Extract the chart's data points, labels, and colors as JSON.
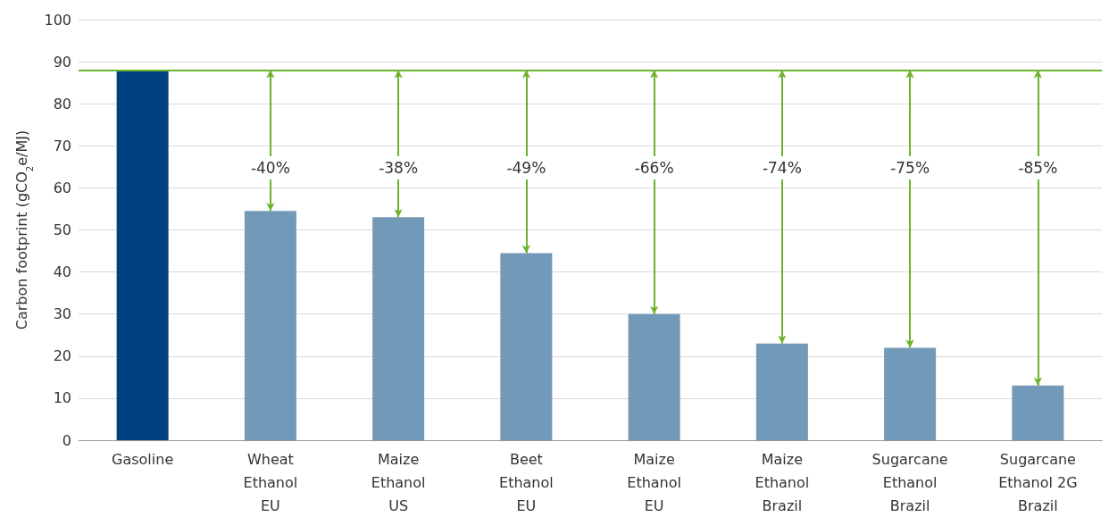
{
  "chart_data": {
    "type": "bar",
    "ylabel": "Carbon footprint (gCO$_{2}$e/MJ)",
    "categories": [
      "Gasoline",
      "Wheat\nEthanol\nEU",
      "Maize\nEthanol\nUS",
      "Beet\nEthanol\nEU",
      "Maize\nEthanol\nEU",
      "Maize\nEthanol\nBrazil",
      "Sugarcane\nEthanol\nBrazil",
      "Sugarcane\nEthanol 2G\nBrazil"
    ],
    "values": [
      88,
      54.5,
      53,
      44.5,
      30,
      23,
      22,
      13
    ],
    "colors": [
      "#00427f",
      "#7399b9",
      "#7399b9",
      "#7399b9",
      "#7399b9",
      "#7399b9",
      "#7399b9",
      "#7399b9"
    ],
    "ylim": [
      0,
      100
    ],
    "yticks": [
      0,
      10,
      20,
      30,
      40,
      50,
      60,
      70,
      80,
      90,
      100
    ],
    "grid": "y",
    "ref_lines": [
      {
        "axis": "y",
        "value": 88,
        "color": "#6ab42d",
        "line_style": "solid"
      }
    ],
    "annotations": [
      "-40%",
      "-38%",
      "-49%",
      "-66%",
      "-74%",
      "-75%",
      "-85%"
    ]
  }
}
